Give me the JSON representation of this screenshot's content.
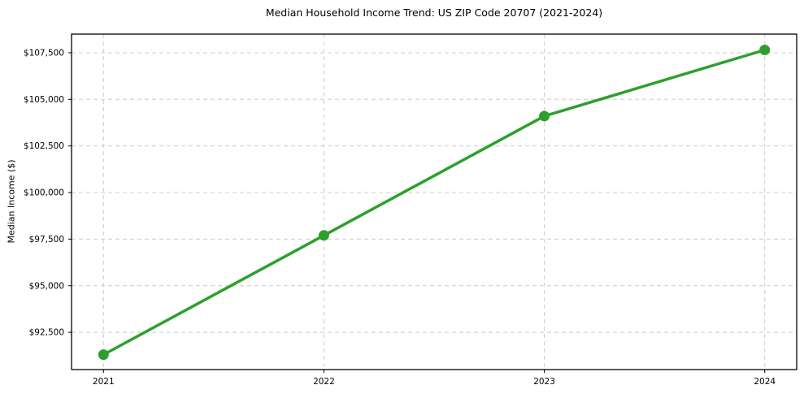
{
  "chart_data": {
    "type": "line",
    "title": "Median Household Income Trend: US ZIP Code 20707 (2021-2024)",
    "xlabel": "",
    "ylabel": "Median Income ($)",
    "x": [
      2021,
      2022,
      2023,
      2024
    ],
    "series": [
      {
        "name": "Median Household Income",
        "values": [
          91300,
          97700,
          104100,
          107650
        ]
      }
    ],
    "xticks": {
      "values": [
        2021,
        2022,
        2023,
        2024
      ],
      "labels": [
        "2021",
        "2022",
        "2023",
        "2024"
      ]
    },
    "yticks": {
      "values": [
        92500,
        95000,
        97500,
        100000,
        102500,
        105000,
        107500
      ],
      "labels": [
        "$92,500",
        "$95,000",
        "$97,500",
        "$100,000",
        "$102,500",
        "$105,000",
        "$107,500"
      ]
    },
    "ylim": [
      90500,
      108500
    ],
    "grid": "dashed",
    "legend_position": "none",
    "line_color": "#2ca02c",
    "marker": "circle",
    "marker_color": "#2ca02c",
    "grid_color": "#cccccc",
    "axis_color": "#000000",
    "background_color": "#ffffff"
  }
}
